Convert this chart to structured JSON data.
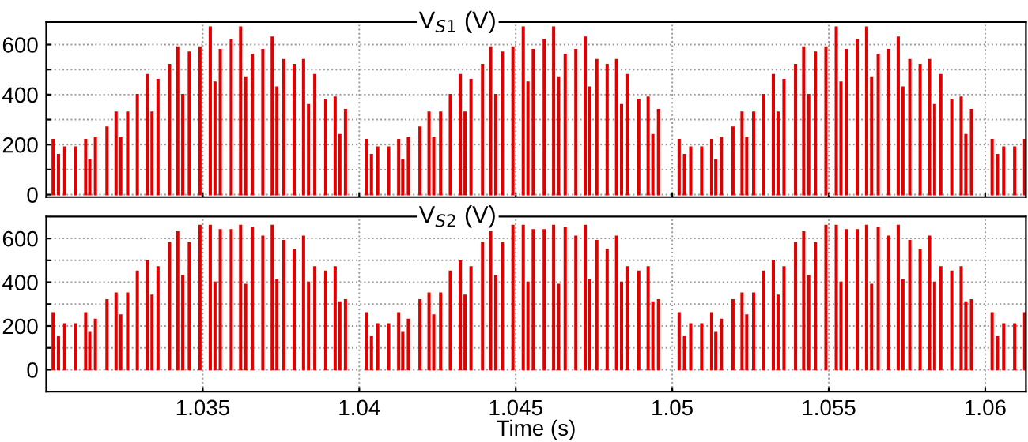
{
  "chart_data": [
    {
      "type": "bar",
      "title": "V$_{S1}$ (V)",
      "color": "#e00000",
      "x": [
        1.03022,
        1.03039,
        1.03059,
        1.03094,
        1.03126,
        1.03139,
        1.03157,
        1.03194,
        1.03223,
        1.03238,
        1.0326,
        1.03291,
        1.03323,
        1.03338,
        1.03357,
        1.03394,
        1.0342,
        1.03436,
        1.03457,
        1.03491,
        1.03524,
        1.03539,
        1.03556,
        1.03591,
        1.03621,
        1.03637,
        1.03658,
        1.03692,
        1.03722,
        1.03737,
        1.03759,
        1.03792,
        1.03822,
        1.03838,
        1.03858,
        1.03893,
        1.03923,
        1.03938,
        1.03956,
        1.04022,
        1.04039,
        1.04059,
        1.04094,
        1.04126,
        1.04139,
        1.04157,
        1.04194,
        1.04223,
        1.04238,
        1.0426,
        1.04291,
        1.04323,
        1.04338,
        1.04357,
        1.04394,
        1.0442,
        1.04436,
        1.04457,
        1.04491,
        1.04524,
        1.04539,
        1.04556,
        1.04591,
        1.04621,
        1.04637,
        1.04658,
        1.04692,
        1.04722,
        1.04737,
        1.04759,
        1.04792,
        1.04822,
        1.04838,
        1.04858,
        1.04893,
        1.04923,
        1.04938,
        1.04956,
        1.05022,
        1.05039,
        1.05059,
        1.05094,
        1.05126,
        1.05139,
        1.05157,
        1.05194,
        1.05223,
        1.05238,
        1.0526,
        1.05291,
        1.05323,
        1.05338,
        1.05357,
        1.05394,
        1.0542,
        1.05436,
        1.05457,
        1.05491,
        1.05524,
        1.05539,
        1.05556,
        1.05591,
        1.05621,
        1.05637,
        1.05658,
        1.05692,
        1.05722,
        1.05737,
        1.05759,
        1.05792,
        1.05822,
        1.05838,
        1.05858,
        1.05893,
        1.05923,
        1.05938,
        1.05956,
        1.06022,
        1.06039,
        1.06059,
        1.06094,
        1.06126
      ],
      "values": [
        220,
        160,
        190,
        190,
        220,
        140,
        230,
        270,
        330,
        230,
        330,
        400,
        480,
        330,
        460,
        520,
        590,
        400,
        570,
        590,
        670,
        450,
        580,
        620,
        670,
        470,
        560,
        580,
        630,
        430,
        540,
        520,
        540,
        360,
        480,
        380,
        390,
        240,
        340,
        220,
        160,
        190,
        190,
        220,
        140,
        230,
        270,
        330,
        230,
        330,
        400,
        480,
        330,
        460,
        520,
        590,
        400,
        570,
        590,
        670,
        450,
        580,
        620,
        670,
        470,
        560,
        580,
        630,
        430,
        540,
        520,
        540,
        360,
        480,
        380,
        390,
        240,
        340,
        220,
        160,
        190,
        190,
        220,
        140,
        230,
        270,
        330,
        230,
        330,
        400,
        480,
        330,
        460,
        520,
        590,
        400,
        570,
        590,
        670,
        450,
        580,
        620,
        670,
        470,
        560,
        580,
        630,
        430,
        540,
        520,
        540,
        360,
        480,
        380,
        390,
        240,
        340,
        220,
        160,
        190,
        190,
        220
      ],
      "xlim": [
        1.03,
        1.0613
      ],
      "xticks": [
        {
          "value": 1.035,
          "label": null
        },
        {
          "value": 1.04,
          "label": null
        },
        {
          "value": 1.045,
          "label": null
        },
        {
          "value": 1.05,
          "label": null
        },
        {
          "value": 1.055,
          "label": null
        },
        {
          "value": 1.06,
          "label": null
        }
      ],
      "ylim": [
        -10,
        690
      ],
      "yticks": [
        0,
        {
          "value": 100,
          "label": null
        },
        200,
        {
          "value": 300,
          "label": null
        },
        400,
        {
          "value": 500,
          "label": null
        },
        600
      ],
      "grid": true,
      "tick_labels": "y"
    },
    {
      "type": "bar",
      "title": "V$_{S2}$ (V)",
      "xlabel": "Time (s)",
      "color": "#e00000",
      "x": [
        1.03022,
        1.03039,
        1.03059,
        1.03094,
        1.03126,
        1.03139,
        1.03157,
        1.03194,
        1.03223,
        1.03238,
        1.0326,
        1.03291,
        1.03323,
        1.03338,
        1.03357,
        1.03394,
        1.0342,
        1.03436,
        1.03457,
        1.03491,
        1.03524,
        1.03539,
        1.03556,
        1.03591,
        1.03621,
        1.03637,
        1.03658,
        1.03692,
        1.03722,
        1.03737,
        1.03759,
        1.03792,
        1.03822,
        1.03838,
        1.03858,
        1.03893,
        1.03923,
        1.03938,
        1.03956,
        1.04022,
        1.04039,
        1.04059,
        1.04094,
        1.04126,
        1.04139,
        1.04157,
        1.04194,
        1.04223,
        1.04238,
        1.0426,
        1.04291,
        1.04323,
        1.04338,
        1.04357,
        1.04394,
        1.0442,
        1.04436,
        1.04457,
        1.04491,
        1.04524,
        1.04539,
        1.04556,
        1.04591,
        1.04621,
        1.04637,
        1.04658,
        1.04692,
        1.04722,
        1.04737,
        1.04759,
        1.04792,
        1.04822,
        1.04838,
        1.04858,
        1.04893,
        1.04923,
        1.04938,
        1.04956,
        1.05022,
        1.05039,
        1.05059,
        1.05094,
        1.05126,
        1.05139,
        1.05157,
        1.05194,
        1.05223,
        1.05238,
        1.0526,
        1.05291,
        1.05323,
        1.05338,
        1.05357,
        1.05394,
        1.0542,
        1.05436,
        1.05457,
        1.05491,
        1.05524,
        1.05539,
        1.05556,
        1.05591,
        1.05621,
        1.05637,
        1.05658,
        1.05692,
        1.05722,
        1.05737,
        1.05759,
        1.05792,
        1.05822,
        1.05838,
        1.05858,
        1.05893,
        1.05923,
        1.05938,
        1.05956,
        1.06022,
        1.06039,
        1.06059,
        1.06094,
        1.06126
      ],
      "values": [
        260,
        150,
        210,
        210,
        260,
        170,
        230,
        320,
        350,
        250,
        350,
        450,
        500,
        340,
        470,
        580,
        630,
        430,
        580,
        660,
        660,
        400,
        640,
        640,
        660,
        390,
        650,
        610,
        660,
        410,
        590,
        550,
        610,
        400,
        470,
        450,
        470,
        310,
        320,
        260,
        150,
        210,
        210,
        260,
        170,
        230,
        320,
        350,
        250,
        350,
        450,
        500,
        340,
        470,
        580,
        630,
        430,
        580,
        660,
        660,
        400,
        640,
        640,
        660,
        390,
        650,
        610,
        660,
        410,
        590,
        550,
        610,
        400,
        470,
        450,
        470,
        310,
        320,
        260,
        150,
        210,
        210,
        260,
        170,
        230,
        320,
        350,
        250,
        350,
        450,
        500,
        340,
        470,
        580,
        630,
        430,
        580,
        660,
        660,
        400,
        640,
        640,
        660,
        390,
        650,
        610,
        660,
        410,
        590,
        550,
        610,
        400,
        470,
        450,
        470,
        310,
        320,
        260,
        150,
        210,
        210,
        260
      ],
      "xlim": [
        1.03,
        1.0613
      ],
      "xticks": [
        1.035,
        1.04,
        1.045,
        1.05,
        1.055,
        1.06
      ],
      "ylim": [
        -100,
        700
      ],
      "yticks": [
        0,
        {
          "value": 100,
          "label": null
        },
        200,
        {
          "value": 300,
          "label": null
        },
        400,
        {
          "value": 500,
          "label": null
        },
        600
      ],
      "grid": true
    }
  ]
}
